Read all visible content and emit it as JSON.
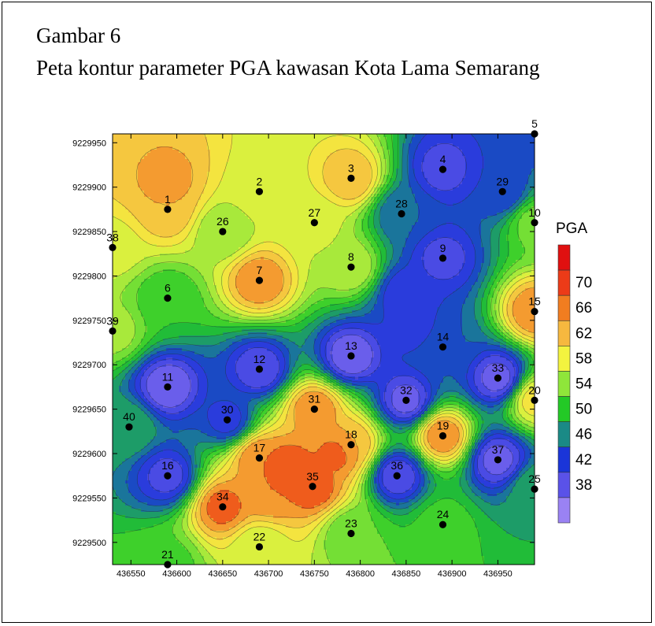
{
  "figure": {
    "caption_line1": "Gambar 6",
    "caption_line2": "Peta kontur parameter PGA kawasan Kota Lama Semarang"
  },
  "chart_data": {
    "type": "contour",
    "title": "",
    "xlabel": "",
    "ylabel": "",
    "xlim": [
      436530,
      436990
    ],
    "ylim": [
      9229475,
      9229960
    ],
    "x_ticks": [
      436550,
      436600,
      436650,
      436700,
      436750,
      436800,
      436850,
      436900,
      436950
    ],
    "y_ticks": [
      9229500,
      9229550,
      9229600,
      9229650,
      9229700,
      9229750,
      9229800,
      9229850,
      9229900,
      9229950
    ],
    "legend": {
      "title": "PGA",
      "placement": "right",
      "levels": [
        38,
        42,
        46,
        50,
        54,
        58,
        62,
        66,
        70
      ],
      "colors": [
        "#9a82f3",
        "#5a52e8",
        "#1a35d8",
        "#1a8a86",
        "#23c926",
        "#8fe63a",
        "#f3f33f",
        "#f6b83f",
        "#f17d20",
        "#ec3b18",
        "#e01010"
      ]
    },
    "points": [
      {
        "id": "1",
        "x": 436590,
        "y": 9229875,
        "pga": 66
      },
      {
        "id": "2",
        "x": 436690,
        "y": 9229895,
        "pga": 61
      },
      {
        "id": "3",
        "x": 436790,
        "y": 9229910,
        "pga": 66
      },
      {
        "id": "4",
        "x": 436890,
        "y": 9229920,
        "pga": 43
      },
      {
        "id": "5",
        "x": 436990,
        "y": 9229960,
        "pga": 47
      },
      {
        "id": "6",
        "x": 436590,
        "y": 9229775,
        "pga": 54
      },
      {
        "id": "7",
        "x": 436690,
        "y": 9229795,
        "pga": 68
      },
      {
        "id": "8",
        "x": 436790,
        "y": 9229810,
        "pga": 60
      },
      {
        "id": "9",
        "x": 436890,
        "y": 9229820,
        "pga": 43
      },
      {
        "id": "10",
        "x": 436990,
        "y": 9229860,
        "pga": 57
      },
      {
        "id": "11",
        "x": 436590,
        "y": 9229675,
        "pga": 40
      },
      {
        "id": "12",
        "x": 436690,
        "y": 9229695,
        "pga": 42
      },
      {
        "id": "13",
        "x": 436790,
        "y": 9229710,
        "pga": 40
      },
      {
        "id": "14",
        "x": 436890,
        "y": 9229720,
        "pga": 48
      },
      {
        "id": "15",
        "x": 436990,
        "y": 9229760,
        "pga": 68
      },
      {
        "id": "16",
        "x": 436590,
        "y": 9229575,
        "pga": 43
      },
      {
        "id": "17",
        "x": 436690,
        "y": 9229595,
        "pga": 68
      },
      {
        "id": "18",
        "x": 436790,
        "y": 9229610,
        "pga": 66
      },
      {
        "id": "19",
        "x": 436890,
        "y": 9229620,
        "pga": 68
      },
      {
        "id": "20",
        "x": 436990,
        "y": 9229660,
        "pga": 63
      },
      {
        "id": "21",
        "x": 436590,
        "y": 9229475,
        "pga": 55
      },
      {
        "id": "22",
        "x": 436690,
        "y": 9229495,
        "pga": 60
      },
      {
        "id": "23",
        "x": 436790,
        "y": 9229510,
        "pga": 56
      },
      {
        "id": "24",
        "x": 436890,
        "y": 9229520,
        "pga": 55
      },
      {
        "id": "25",
        "x": 436990,
        "y": 9229560,
        "pga": 52
      },
      {
        "id": "26",
        "x": 436650,
        "y": 9229850,
        "pga": 58
      },
      {
        "id": "27",
        "x": 436750,
        "y": 9229860,
        "pga": 61
      },
      {
        "id": "28",
        "x": 436845,
        "y": 9229870,
        "pga": 48
      },
      {
        "id": "29",
        "x": 436955,
        "y": 9229895,
        "pga": 46
      },
      {
        "id": "30",
        "x": 436655,
        "y": 9229638,
        "pga": 45
      },
      {
        "id": "31",
        "x": 436750,
        "y": 9229650,
        "pga": 68
      },
      {
        "id": "32",
        "x": 436850,
        "y": 9229660,
        "pga": 41
      },
      {
        "id": "33",
        "x": 436950,
        "y": 9229685,
        "pga": 41
      },
      {
        "id": "34",
        "x": 436650,
        "y": 9229540,
        "pga": 69
      },
      {
        "id": "35",
        "x": 436748,
        "y": 9229563,
        "pga": 70
      },
      {
        "id": "36",
        "x": 436840,
        "y": 9229575,
        "pga": 42
      },
      {
        "id": "37",
        "x": 436950,
        "y": 9229593,
        "pga": 41
      },
      {
        "id": "38",
        "x": 436530,
        "y": 9229832,
        "pga": 61
      },
      {
        "id": "39",
        "x": 436530,
        "y": 9229738,
        "pga": 59
      },
      {
        "id": "40",
        "x": 436548,
        "y": 9229630,
        "pga": 52
      }
    ],
    "extra_features": [
      {
        "x": 436590,
        "y": 9229908,
        "pga": 67
      },
      {
        "x": 436565,
        "y": 9229930,
        "pga": 66
      },
      {
        "x": 436850,
        "y": 9229780,
        "pga": 44
      },
      {
        "x": 436860,
        "y": 9229740,
        "pga": 45
      },
      {
        "x": 436720,
        "y": 9229585,
        "pga": 70
      },
      {
        "x": 436775,
        "y": 9229600,
        "pga": 69
      },
      {
        "x": 436700,
        "y": 9229555,
        "pga": 68
      }
    ],
    "grid": false,
    "contour_lines": true
  }
}
